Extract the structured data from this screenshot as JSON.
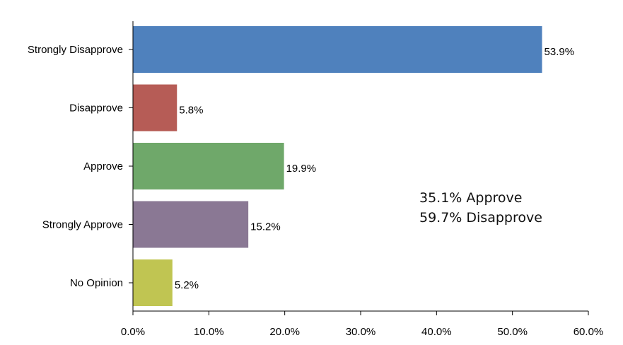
{
  "chart_data": {
    "type": "bar",
    "orientation": "horizontal",
    "categories": [
      "Strongly Disapprove",
      "Disapprove",
      "Approve",
      "Strongly Approve",
      "No Opinion"
    ],
    "values": [
      53.9,
      5.8,
      19.9,
      15.2,
      5.2
    ],
    "data_labels": [
      "53.9%",
      "5.8%",
      "19.9%",
      "15.2%",
      "5.2%"
    ],
    "colors": [
      "#4f81bd",
      "#b65c56",
      "#6fa86a",
      "#8a7894",
      "#c0c552"
    ],
    "xlim": [
      0,
      60
    ],
    "x_ticks": [
      0,
      10,
      20,
      30,
      40,
      50,
      60
    ],
    "x_tick_labels": [
      "0.0%",
      "10.0%",
      "20.0%",
      "30.0%",
      "40.0%",
      "50.0%",
      "60.0%"
    ],
    "grid": false,
    "legend": "none",
    "title": "",
    "xlabel": "",
    "ylabel": "",
    "annotations": [
      "35.1% Approve",
      "59.7% Disapprove"
    ]
  }
}
